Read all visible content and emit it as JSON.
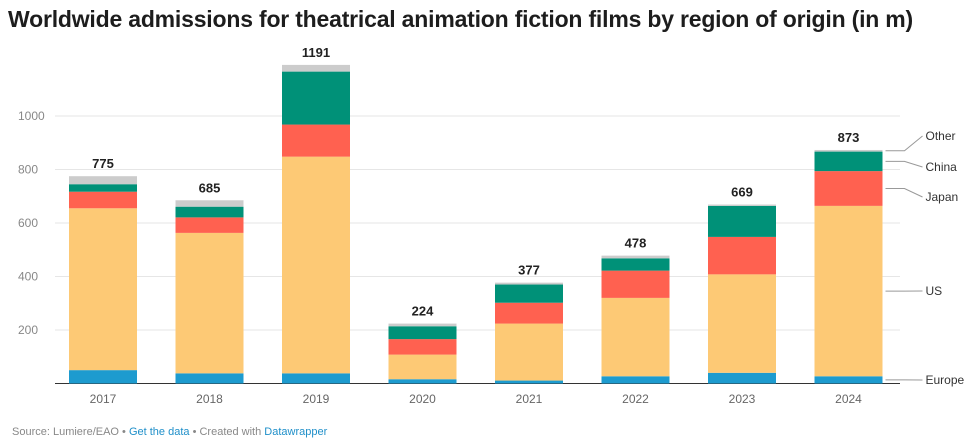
{
  "chart_data": {
    "type": "bar",
    "stacked": true,
    "title": "Worldwide admissions for theatrical animation fiction films by region of origin (in m)",
    "categories": [
      "2017",
      "2018",
      "2019",
      "2020",
      "2021",
      "2022",
      "2023",
      "2024"
    ],
    "totals": [
      "775",
      "685",
      "1191",
      "224",
      "377",
      "478",
      "669",
      "873"
    ],
    "ylim": [
      0,
      1200
    ],
    "yticks": [
      "200",
      "400",
      "600",
      "800",
      "1000"
    ],
    "ytick_values": [
      200,
      400,
      600,
      800,
      1000
    ],
    "grid": true,
    "legend": "right, inline labels",
    "series": [
      {
        "name": "Europe",
        "color": "#1d9bcf",
        "values": [
          50,
          38,
          38,
          16,
          11,
          27,
          40,
          27
        ]
      },
      {
        "name": "US",
        "color": "#fdc975",
        "values": [
          605,
          525,
          810,
          92,
          213,
          293,
          368,
          637
        ]
      },
      {
        "name": "Japan",
        "color": "#ff6150",
        "values": [
          62,
          58,
          120,
          58,
          78,
          102,
          140,
          130
        ]
      },
      {
        "name": "China",
        "color": "#009178",
        "values": [
          28,
          40,
          198,
          48,
          68,
          46,
          116,
          73
        ]
      },
      {
        "name": "Other",
        "color": "#cccccc",
        "values": [
          30,
          24,
          25,
          10,
          7,
          10,
          5,
          6
        ]
      }
    ]
  },
  "footer": {
    "source": "Source: Lumiere/EAO",
    "sep1": " • ",
    "link": "Get the data",
    "sep2": " • Created with ",
    "tool": "Datawrapper"
  }
}
